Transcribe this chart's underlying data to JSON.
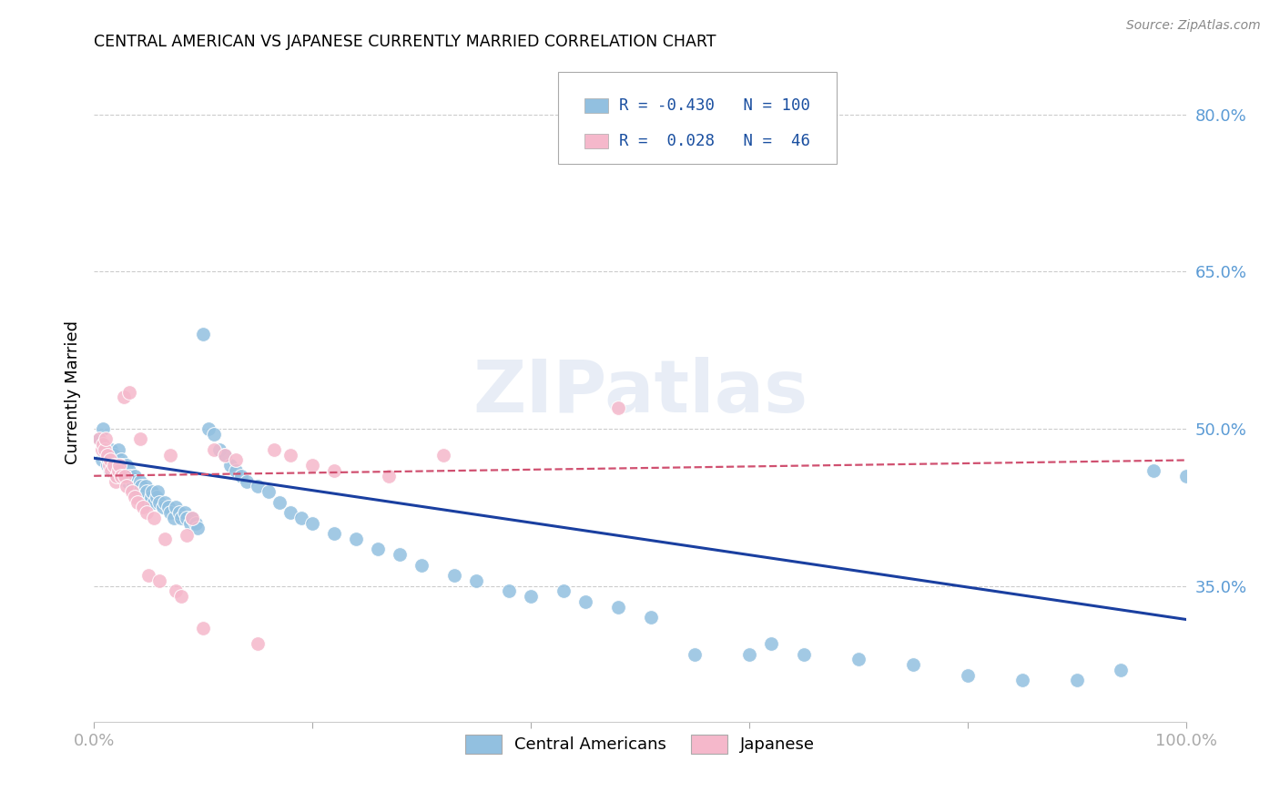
{
  "title": "CENTRAL AMERICAN VS JAPANESE CURRENTLY MARRIED CORRELATION CHART",
  "source": "Source: ZipAtlas.com",
  "ylabel": "Currently Married",
  "blue_r": "-0.430",
  "blue_n": "100",
  "pink_r": "0.028",
  "pink_n": "46",
  "blue_color": "#92c0e0",
  "pink_color": "#f5b8cb",
  "trendline_blue": "#1a3fa0",
  "trendline_pink": "#d05070",
  "ytick_labels": [
    "35.0%",
    "50.0%",
    "65.0%",
    "80.0%"
  ],
  "ytick_values": [
    0.35,
    0.5,
    0.65,
    0.8
  ],
  "watermark": "ZIPatlas",
  "blue_trendline_start_y": 0.472,
  "blue_trendline_end_y": 0.318,
  "pink_trendline_start_y": 0.455,
  "pink_trendline_end_y": 0.47,
  "blue_points_x": [
    0.005,
    0.007,
    0.008,
    0.01,
    0.01,
    0.012,
    0.013,
    0.015,
    0.015,
    0.016,
    0.017,
    0.018,
    0.02,
    0.021,
    0.022,
    0.022,
    0.023,
    0.024,
    0.025,
    0.026,
    0.027,
    0.028,
    0.03,
    0.03,
    0.031,
    0.032,
    0.033,
    0.035,
    0.036,
    0.037,
    0.038,
    0.04,
    0.041,
    0.042,
    0.043,
    0.045,
    0.046,
    0.047,
    0.048,
    0.05,
    0.052,
    0.053,
    0.055,
    0.057,
    0.058,
    0.06,
    0.063,
    0.065,
    0.068,
    0.07,
    0.073,
    0.075,
    0.078,
    0.08,
    0.083,
    0.085,
    0.088,
    0.09,
    0.093,
    0.095,
    0.1,
    0.105,
    0.11,
    0.115,
    0.12,
    0.125,
    0.13,
    0.135,
    0.14,
    0.15,
    0.16,
    0.17,
    0.18,
    0.19,
    0.2,
    0.22,
    0.24,
    0.26,
    0.28,
    0.3,
    0.33,
    0.35,
    0.38,
    0.4,
    0.43,
    0.45,
    0.48,
    0.51,
    0.55,
    0.6,
    0.62,
    0.65,
    0.7,
    0.75,
    0.8,
    0.85,
    0.9,
    0.94,
    0.97,
    1.0
  ],
  "blue_points_y": [
    0.49,
    0.47,
    0.5,
    0.48,
    0.475,
    0.465,
    0.47,
    0.46,
    0.475,
    0.48,
    0.465,
    0.475,
    0.46,
    0.455,
    0.47,
    0.48,
    0.465,
    0.455,
    0.47,
    0.465,
    0.46,
    0.455,
    0.465,
    0.455,
    0.45,
    0.46,
    0.455,
    0.45,
    0.445,
    0.455,
    0.45,
    0.445,
    0.44,
    0.45,
    0.445,
    0.44,
    0.435,
    0.445,
    0.44,
    0.43,
    0.435,
    0.44,
    0.43,
    0.435,
    0.44,
    0.43,
    0.425,
    0.43,
    0.425,
    0.42,
    0.415,
    0.425,
    0.42,
    0.415,
    0.42,
    0.415,
    0.41,
    0.415,
    0.41,
    0.405,
    0.59,
    0.5,
    0.495,
    0.48,
    0.475,
    0.465,
    0.46,
    0.455,
    0.45,
    0.445,
    0.44,
    0.43,
    0.42,
    0.415,
    0.41,
    0.4,
    0.395,
    0.385,
    0.38,
    0.37,
    0.36,
    0.355,
    0.345,
    0.34,
    0.345,
    0.335,
    0.33,
    0.32,
    0.285,
    0.285,
    0.295,
    0.285,
    0.28,
    0.275,
    0.265,
    0.26,
    0.26,
    0.27,
    0.46,
    0.455
  ],
  "pink_points_x": [
    0.005,
    0.007,
    0.008,
    0.01,
    0.011,
    0.012,
    0.014,
    0.015,
    0.016,
    0.018,
    0.02,
    0.021,
    0.022,
    0.023,
    0.025,
    0.027,
    0.028,
    0.03,
    0.032,
    0.035,
    0.037,
    0.04,
    0.042,
    0.045,
    0.048,
    0.05,
    0.055,
    0.06,
    0.065,
    0.07,
    0.075,
    0.08,
    0.085,
    0.09,
    0.1,
    0.11,
    0.12,
    0.13,
    0.15,
    0.165,
    0.18,
    0.2,
    0.22,
    0.27,
    0.32,
    0.48
  ],
  "pink_points_y": [
    0.49,
    0.48,
    0.485,
    0.48,
    0.49,
    0.475,
    0.465,
    0.47,
    0.46,
    0.465,
    0.45,
    0.455,
    0.46,
    0.465,
    0.455,
    0.53,
    0.455,
    0.445,
    0.535,
    0.44,
    0.435,
    0.43,
    0.49,
    0.425,
    0.42,
    0.36,
    0.415,
    0.355,
    0.395,
    0.475,
    0.345,
    0.34,
    0.398,
    0.415,
    0.31,
    0.48,
    0.475,
    0.47,
    0.295,
    0.48,
    0.475,
    0.465,
    0.46,
    0.455,
    0.475,
    0.52
  ],
  "xmin": 0.0,
  "xmax": 1.0,
  "ymin": 0.22,
  "ymax": 0.85
}
